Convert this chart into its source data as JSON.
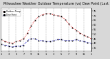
{
  "title": "  Milwaukee Weather Outdoor Temperature (vs) Dew Point (Last 24 Hours)",
  "title_fontsize": 3.5,
  "bg_color": "#d8d8d8",
  "plot_bg": "#ffffff",
  "ylim": [
    32,
    78
  ],
  "xlim": [
    0,
    24
  ],
  "temp_color": "#dd0000",
  "dew_color": "#0000cc",
  "marker_color": "#000000",
  "x_temp": [
    0,
    1,
    2,
    3,
    4,
    5,
    6,
    7,
    8,
    9,
    10,
    11,
    12,
    13,
    14,
    15,
    16,
    17,
    18,
    19,
    20,
    21,
    22,
    23,
    24
  ],
  "y_temp": [
    44,
    42,
    41,
    40,
    42,
    43,
    45,
    51,
    59,
    65,
    69,
    71,
    72,
    72,
    71,
    70,
    69,
    66,
    61,
    57,
    54,
    51,
    49,
    47,
    45
  ],
  "x_dew": [
    0,
    1,
    2,
    3,
    4,
    5,
    6,
    7,
    8,
    9,
    10,
    11,
    12,
    13,
    14,
    15,
    16,
    17,
    18,
    19,
    20,
    21,
    22,
    23,
    24
  ],
  "y_dew": [
    39,
    38,
    37,
    36,
    37,
    37,
    38,
    43,
    45,
    45,
    43,
    43,
    42,
    42,
    43,
    44,
    44,
    43,
    43,
    43,
    44,
    43,
    42,
    41,
    40
  ],
  "xtick_positions": [
    0,
    2,
    4,
    6,
    8,
    10,
    12,
    14,
    16,
    18,
    20,
    22,
    24
  ],
  "xtick_labels": [
    "1",
    "3",
    "5",
    "7",
    "9",
    "11",
    "1",
    "3",
    "5",
    "7",
    "9",
    "11",
    "1"
  ],
  "vgrid_positions": [
    2,
    4,
    6,
    8,
    10,
    12,
    14,
    16,
    18,
    20,
    22
  ],
  "ytick_vals": [
    35,
    40,
    45,
    50,
    55,
    60,
    65,
    70,
    75
  ],
  "legend_temp": "Outdoor Temp",
  "legend_dew": "Dew Point",
  "marker_size": 1.2,
  "linewidth": 0.7
}
